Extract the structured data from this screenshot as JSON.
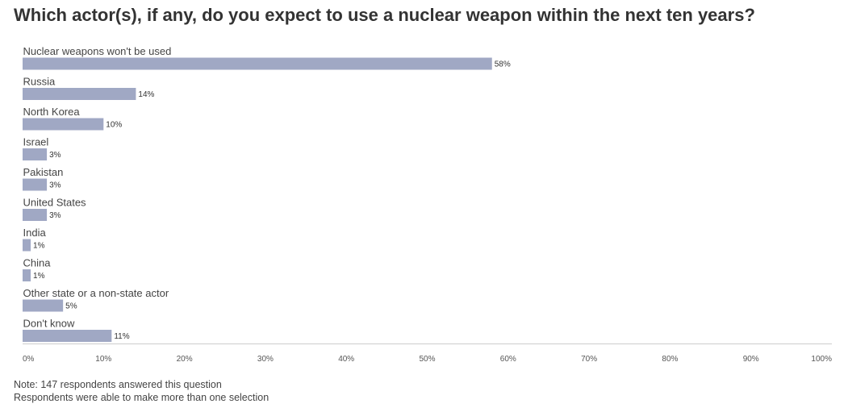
{
  "chart_data": {
    "type": "bar",
    "orientation": "horizontal",
    "title": "Which actor(s), if any, do you expect to use a nuclear weapon within the next ten years?",
    "categories": [
      "Nuclear weapons won't be used",
      "Russia",
      "North Korea",
      "Israel",
      "Pakistan",
      "United States",
      "India",
      "China",
      "Other state or a non-state actor",
      "Don't know"
    ],
    "values": [
      58,
      14,
      10,
      3,
      3,
      3,
      1,
      1,
      5,
      11
    ],
    "value_labels": [
      "58%",
      "14%",
      "10%",
      "3%",
      "3%",
      "3%",
      "1%",
      "1%",
      "5%",
      "11%"
    ],
    "xlim": [
      0,
      100
    ],
    "x_ticks": [
      0,
      10,
      20,
      30,
      40,
      50,
      60,
      70,
      80,
      90,
      100
    ],
    "x_tick_labels": [
      "0%",
      "10%",
      "20%",
      "30%",
      "40%",
      "50%",
      "60%",
      "70%",
      "80%",
      "90%",
      "100%"
    ],
    "grid": false,
    "bar_color": "#a0a8c4",
    "axis_color": "#cccccc"
  },
  "notes": [
    "Note: 147 respondents answered this question",
    "Respondents were able to make more than one selection"
  ]
}
